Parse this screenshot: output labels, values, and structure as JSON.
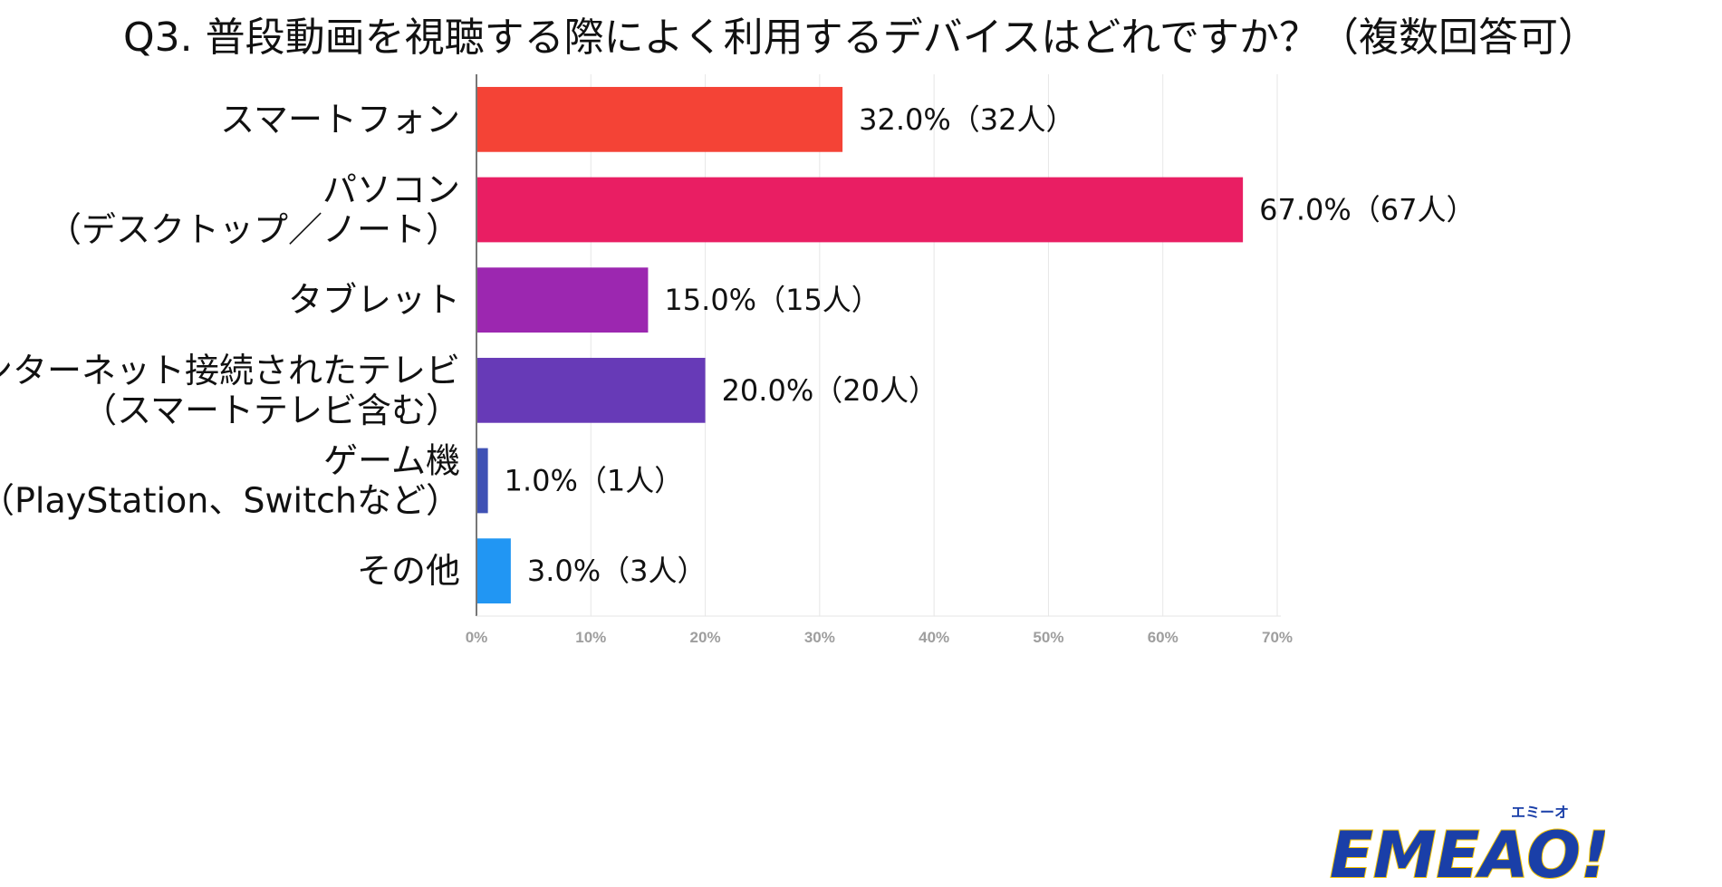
{
  "chart_data": {
    "type": "bar",
    "orientation": "horizontal",
    "title": "Q3. 普段動画を視聴する際によく利用するデバイスはどれですか？（複数回答可）",
    "categories": [
      [
        "スマートフォン"
      ],
      [
        "パソコン",
        "（デスクトップ／ノート）"
      ],
      [
        "タブレット"
      ],
      [
        "インターネット接続されたテレビ",
        "（スマートテレビ含む）"
      ],
      [
        "ゲーム機",
        "（PlayStation、Switchなど）"
      ],
      [
        "その他"
      ]
    ],
    "values": [
      32.0,
      67.0,
      15.0,
      20.0,
      1.0,
      3.0
    ],
    "counts": [
      32,
      67,
      15,
      20,
      1,
      3
    ],
    "data_labels": [
      "32.0%（32人）",
      "67.0%（67人）",
      "15.0%（15人）",
      "20.0%（20人）",
      "1.0%（1人）",
      "3.0%（3人）"
    ],
    "colors": [
      "#f44336",
      "#e91e63",
      "#9c27b0",
      "#673ab7",
      "#3f51b5",
      "#2196f3"
    ],
    "xlim": [
      0,
      70
    ],
    "xticks": [
      0,
      10,
      20,
      30,
      40,
      50,
      60,
      70
    ],
    "xtick_labels": [
      "0%",
      "10%",
      "20%",
      "30%",
      "40%",
      "50%",
      "60%",
      "70%"
    ],
    "xlabel": "",
    "ylabel": "",
    "grid": true,
    "legend": "none"
  },
  "brand": {
    "logo_text": "EMEAO!",
    "logo_ruby": "エミーオ",
    "logo_color": "#1a3fa8",
    "accent_color": "#f5c400"
  }
}
